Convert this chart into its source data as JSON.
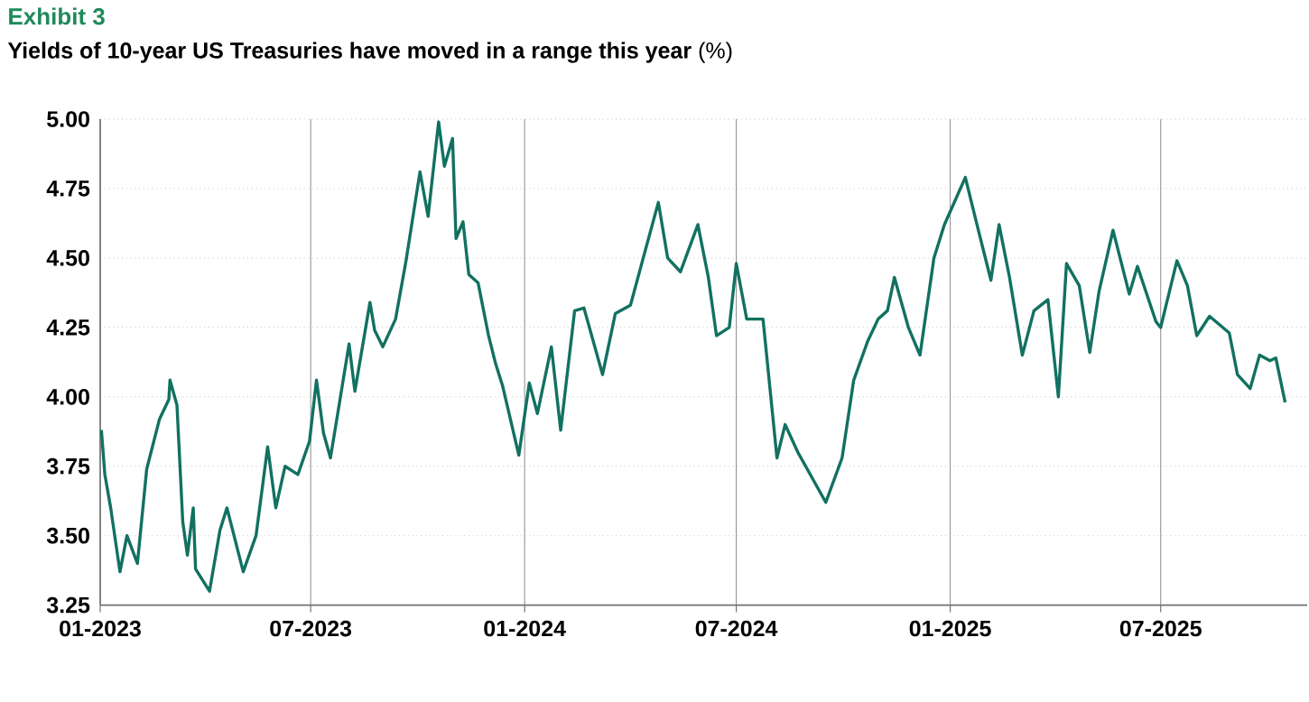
{
  "chart_data": {
    "type": "line",
    "title": "Exhibit 3",
    "subtitle": "**Yields of 10-year US Treasuries have moved in a range this year** (%)",
    "x": [
      "2023-01-02",
      "2023-01-05",
      "2023-01-10",
      "2023-01-18",
      "2023-01-24",
      "2023-02-02",
      "2023-02-10",
      "2023-02-21",
      "2023-03-01",
      "2023-03-02",
      "2023-03-08",
      "2023-03-13",
      "2023-03-17",
      "2023-03-22",
      "2023-03-24",
      "2023-04-05",
      "2023-04-14",
      "2023-04-20",
      "2023-05-04",
      "2023-05-15",
      "2023-05-25",
      "2023-06-01",
      "2023-06-09",
      "2023-06-20",
      "2023-06-30",
      "2023-07-06",
      "2023-07-12",
      "2023-07-18",
      "2023-07-27",
      "2023-08-03",
      "2023-08-08",
      "2023-08-21",
      "2023-08-25",
      "2023-09-01",
      "2023-09-12",
      "2023-09-21",
      "2023-10-03",
      "2023-10-10",
      "2023-10-19",
      "2023-10-24",
      "2023-10-31",
      "2023-11-03",
      "2023-11-09",
      "2023-11-14",
      "2023-11-22",
      "2023-12-01",
      "2023-12-07",
      "2023-12-13",
      "2023-12-27",
      "2024-01-05",
      "2024-01-12",
      "2024-01-24",
      "2024-02-01",
      "2024-02-13",
      "2024-02-21",
      "2024-03-08",
      "2024-03-19",
      "2024-04-01",
      "2024-04-12",
      "2024-04-25",
      "2024-05-03",
      "2024-05-14",
      "2024-05-29",
      "2024-06-07",
      "2024-06-14",
      "2024-06-25",
      "2024-07-01",
      "2024-07-10",
      "2024-07-24",
      "2024-08-05",
      "2024-08-12",
      "2024-08-23",
      "2024-09-16",
      "2024-09-30",
      "2024-10-10",
      "2024-10-22",
      "2024-10-31",
      "2024-11-08",
      "2024-11-14",
      "2024-11-26",
      "2024-12-06",
      "2024-12-18",
      "2024-12-27",
      "2025-01-14",
      "2025-01-24",
      "2025-02-05",
      "2025-02-12",
      "2025-02-21",
      "2025-03-04",
      "2025-03-14",
      "2025-03-26",
      "2025-04-04",
      "2025-04-11",
      "2025-04-22",
      "2025-05-01",
      "2025-05-09",
      "2025-05-21",
      "2025-06-04",
      "2025-06-11",
      "2025-06-27",
      "2025-07-01",
      "2025-07-15",
      "2025-07-24",
      "2025-08-01",
      "2025-08-12",
      "2025-08-29",
      "2025-09-05",
      "2025-09-16",
      "2025-09-24",
      "2025-10-03",
      "2025-10-08",
      "2025-10-16"
    ],
    "series": [
      {
        "color": "#127161",
        "values": [
          3.88,
          3.72,
          3.6,
          3.37,
          3.5,
          3.4,
          3.74,
          3.92,
          3.99,
          4.06,
          3.97,
          3.55,
          3.43,
          3.6,
          3.38,
          3.3,
          3.52,
          3.6,
          3.37,
          3.5,
          3.82,
          3.6,
          3.75,
          3.72,
          3.84,
          4.06,
          3.87,
          3.78,
          4.01,
          4.19,
          4.02,
          4.34,
          4.24,
          4.18,
          4.28,
          4.49,
          4.81,
          4.65,
          4.99,
          4.83,
          4.93,
          4.57,
          4.63,
          4.44,
          4.41,
          4.22,
          4.12,
          4.04,
          3.79,
          4.05,
          3.94,
          4.18,
          3.88,
          4.31,
          4.32,
          4.08,
          4.3,
          4.33,
          4.5,
          4.7,
          4.5,
          4.45,
          4.62,
          4.43,
          4.22,
          4.25,
          4.48,
          4.28,
          4.28,
          3.78,
          3.9,
          3.8,
          3.62,
          3.78,
          4.06,
          4.2,
          4.28,
          4.31,
          4.43,
          4.25,
          4.15,
          4.5,
          4.62,
          4.79,
          4.62,
          4.42,
          4.62,
          4.43,
          4.15,
          4.31,
          4.35,
          4.0,
          4.48,
          4.4,
          4.16,
          4.38,
          4.6,
          4.37,
          4.47,
          4.27,
          4.25,
          4.49,
          4.4,
          4.22,
          4.29,
          4.23,
          4.08,
          4.03,
          4.15,
          4.13,
          4.14,
          3.98
        ]
      }
    ],
    "xlim": [
      "2023-01-01",
      "2025-11-04"
    ],
    "xticks": [
      {
        "value": "2023-01-01",
        "label": "01-2023"
      },
      {
        "value": "2023-07-01",
        "label": "07-2023"
      },
      {
        "value": "2024-01-01",
        "label": "01-2024"
      },
      {
        "value": "2024-07-01",
        "label": "07-2024"
      },
      {
        "value": "2025-01-01",
        "label": "01-2025"
      },
      {
        "value": "2025-07-01",
        "label": "07-2025"
      }
    ],
    "ylim": [
      3.25,
      5.0
    ],
    "yticks": [
      {
        "value": 3.25,
        "label": "3.25"
      },
      {
        "value": 3.5,
        "label": "3.50"
      },
      {
        "value": 3.75,
        "label": "3.75"
      },
      {
        "value": 4.0,
        "label": "4.00"
      },
      {
        "value": 4.25,
        "label": "4.25"
      },
      {
        "value": 4.5,
        "label": "4.50"
      },
      {
        "value": 4.75,
        "label": "4.75"
      },
      {
        "value": 5.0,
        "label": "5.00"
      }
    ],
    "grid": true,
    "marker": "none",
    "line_style": "solid"
  }
}
